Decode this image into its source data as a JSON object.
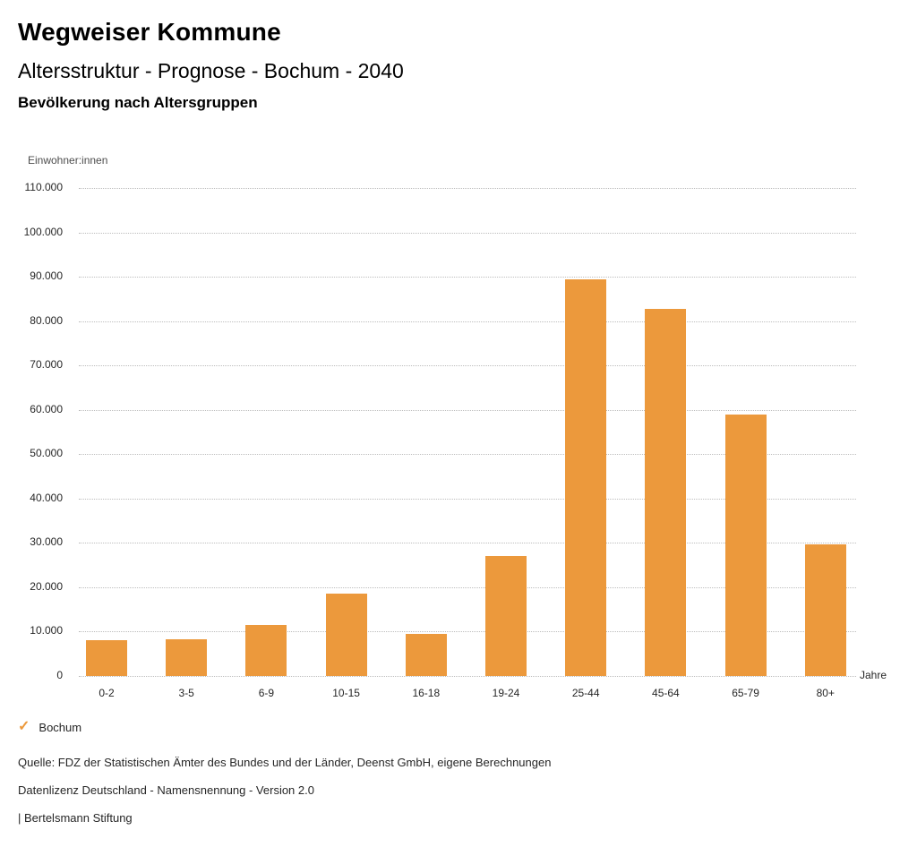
{
  "header": {
    "title": "Wegweiser Kommune",
    "subtitle": "Altersstruktur - Prognose - Bochum - 2040",
    "chart_heading": "Bevölkerung nach Altersgruppen"
  },
  "chart_data": {
    "type": "bar",
    "title": "Bevölkerung nach Altersgruppen",
    "categories": [
      "0-2",
      "3-5",
      "6-9",
      "10-15",
      "16-18",
      "19-24",
      "25-44",
      "45-64",
      "65-79",
      "80+"
    ],
    "series": [
      {
        "name": "Bochum",
        "values": [
          8100,
          8250,
          11500,
          18500,
          9450,
          27100,
          89500,
          82800,
          59000,
          29600
        ]
      }
    ],
    "ylabel": "Einwohner:innen",
    "xlabel": "Jahre",
    "ylim": [
      0,
      110000
    ],
    "ytick_step": 10000,
    "ytick_format": "german-thousands-dot",
    "grid": "horizontal-dotted",
    "legend_position": "bottom-left"
  },
  "legend": {
    "check_icon": "✓",
    "label": "Bochum"
  },
  "footer": {
    "source": "Quelle: FDZ der Statistischen Ämter des Bundes und der Länder, Deenst GmbH, eigene Berechnungen",
    "license": "Datenlizenz Deutschland - Namensnennung - Version 2.0",
    "attribution": "| Bertelsmann Stiftung"
  },
  "colors": {
    "bar": "#EC993C",
    "accent": "#EC993C",
    "grid": "#BDBDBD",
    "text": "#262626"
  }
}
